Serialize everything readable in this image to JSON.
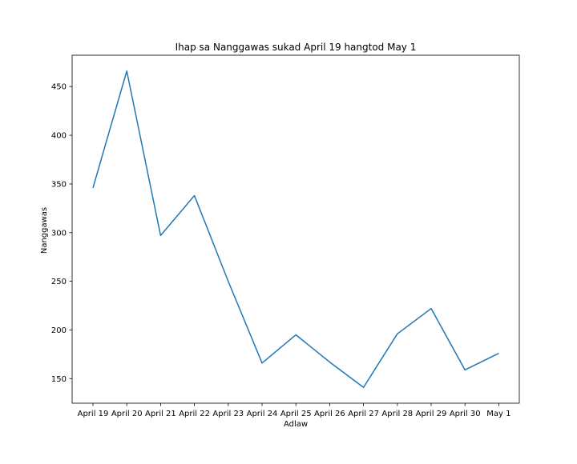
{
  "chart_data": {
    "type": "line",
    "title": "Ihap sa Nanggawas sukad April 19 hangtod May 1",
    "xlabel": "Adlaw",
    "ylabel": "Nanggawas",
    "categories": [
      "April 19",
      "April 20",
      "April 21",
      "April 22",
      "April 23",
      "April 24",
      "April 25",
      "April 26",
      "April 27",
      "April 28",
      "April 29",
      "April 30",
      "May 1"
    ],
    "series": [
      {
        "values": [
          346,
          466,
          297,
          338,
          250,
          166,
          195,
          167,
          141,
          196,
          222,
          159,
          176
        ],
        "color": "#1f77b4"
      }
    ],
    "yticks": [
      150,
      200,
      250,
      300,
      350,
      400,
      450
    ],
    "ylim": [
      124.75,
      482.25
    ],
    "grid": false,
    "legend": "none"
  }
}
